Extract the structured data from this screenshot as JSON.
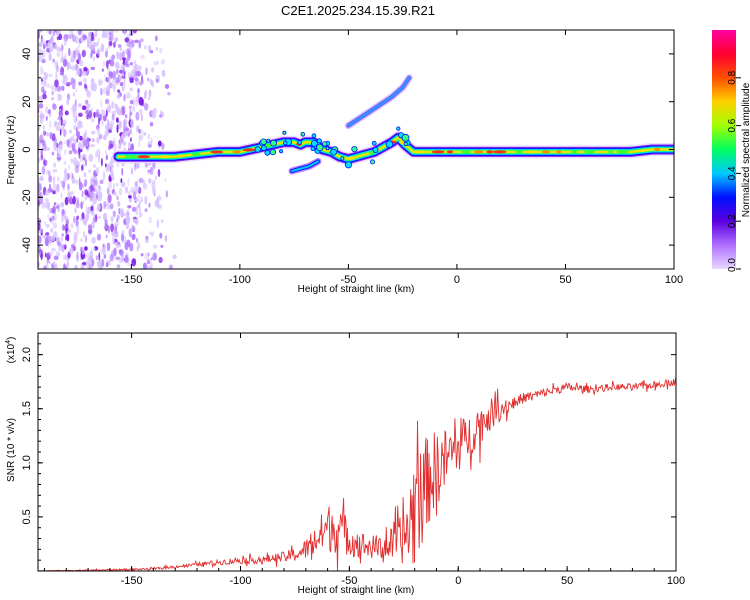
{
  "chart_data": [
    {
      "type": "heatmap",
      "title": "C2E1.2025.234.15.39.R21",
      "xlabel": "Height of straight line (km)",
      "ylabel": "Frequency (Hz)",
      "xlim": [
        -193,
        100
      ],
      "ylim": [
        -50,
        50
      ],
      "xticks": [
        "-150",
        "-100",
        "-50",
        "0",
        "50",
        "100"
      ],
      "yticks": [
        "-40",
        "-20",
        "0",
        "20",
        "40"
      ],
      "colorbar": {
        "label": "Normalized spectral amplitude",
        "range": [
          0,
          1
        ],
        "ticks": [
          "0.0",
          "0.2",
          "0.4",
          "0.6",
          "0.8"
        ],
        "colors": [
          "#e8d8ff",
          "#7a00d8",
          "#0010ff",
          "#00e8ff",
          "#00ff40",
          "#e8ff00",
          "#ff8000",
          "#ff0000",
          "#ff0090"
        ]
      },
      "trace": {
        "x": [
          -156,
          -150,
          -140,
          -130,
          -120,
          -110,
          -100,
          -95,
          -90,
          -85,
          -80,
          -75,
          -72,
          -70,
          -66,
          -62,
          -58,
          -54,
          -50,
          -46,
          -42,
          -38,
          -34,
          -30,
          -27,
          -24,
          -20,
          -15,
          -10,
          -5,
          0,
          10,
          20,
          30,
          40,
          50,
          60,
          70,
          80,
          90,
          95,
          100
        ],
        "y": [
          -3,
          -3,
          -3,
          -3,
          -2,
          -1,
          -1,
          0,
          1,
          2,
          3,
          3,
          2,
          3,
          3,
          0,
          -1,
          -3,
          -4,
          -3,
          -2,
          -1,
          1,
          3,
          5,
          2,
          -1,
          -1,
          -1,
          -1,
          -1,
          -1,
          -1,
          -1,
          -1,
          -1,
          -1,
          -1,
          -1,
          0,
          0,
          0
        ]
      },
      "branches": [
        {
          "x": [
            -76,
            -72,
            -68,
            -64
          ],
          "y": [
            -9,
            -8,
            -7,
            -5
          ]
        },
        {
          "x": [
            -50,
            -45,
            -40,
            -35,
            -30,
            -25,
            -22
          ],
          "y": [
            10,
            13,
            16,
            19,
            22,
            26,
            30
          ]
        }
      ],
      "noise_region": {
        "x": [
          -193,
          -140
        ],
        "y": [
          -50,
          50
        ]
      }
    },
    {
      "type": "line",
      "xlabel": "Height of straight line (km)",
      "ylabel": "SNR (10 * v/v)",
      "multiplier": "(x10",
      "multiplier_exp": "4",
      "xlim": [
        -193,
        100
      ],
      "ylim": [
        0,
        2.2
      ],
      "xticks": [
        "-150",
        "-100",
        "-50",
        "0",
        "50",
        "100"
      ],
      "yticks": [
        "0.5",
        "1.0",
        "1.5",
        "2.0"
      ],
      "color": "#e03030",
      "series": [
        {
          "name": "SNR",
          "x": [
            -193,
            -160,
            -140,
            -130,
            -120,
            -110,
            -100,
            -95,
            -90,
            -85,
            -80,
            -75,
            -70,
            -65,
            -60,
            -55,
            -50,
            -45,
            -40,
            -35,
            -30,
            -25,
            -22,
            -20,
            -18,
            -15,
            -10,
            -5,
            0,
            5,
            10,
            15,
            20,
            25,
            30,
            40,
            50,
            60,
            70,
            80,
            90,
            100
          ],
          "mean": [
            0.0,
            0.01,
            0.02,
            0.04,
            0.06,
            0.08,
            0.1,
            0.1,
            0.1,
            0.12,
            0.13,
            0.15,
            0.2,
            0.3,
            0.4,
            0.4,
            0.3,
            0.25,
            0.22,
            0.22,
            0.25,
            0.3,
            0.45,
            0.6,
            0.7,
            0.8,
            0.95,
            1.05,
            1.15,
            1.25,
            1.35,
            1.45,
            1.5,
            1.55,
            1.6,
            1.65,
            1.7,
            1.68,
            1.7,
            1.7,
            1.72,
            1.75
          ],
          "spread": [
            0.005,
            0.008,
            0.01,
            0.015,
            0.02,
            0.03,
            0.04,
            0.04,
            0.04,
            0.05,
            0.06,
            0.08,
            0.12,
            0.2,
            0.28,
            0.3,
            0.2,
            0.15,
            0.14,
            0.15,
            0.2,
            0.3,
            0.6,
            0.75,
            0.7,
            0.55,
            0.45,
            0.35,
            0.3,
            0.25,
            0.22,
            0.18,
            0.12,
            0.08,
            0.06,
            0.05,
            0.05,
            0.04,
            0.04,
            0.04,
            0.04,
            0.04
          ]
        }
      ]
    }
  ]
}
